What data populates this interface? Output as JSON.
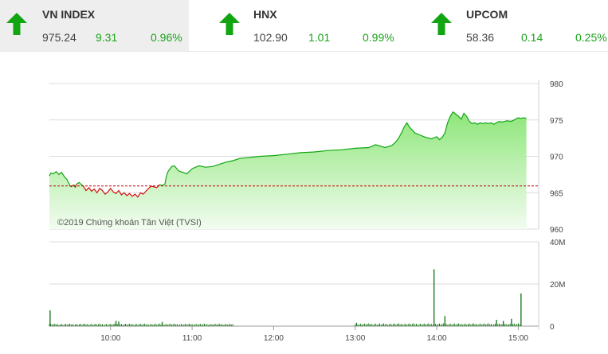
{
  "indices": [
    {
      "name": "VN INDEX",
      "value": "975.24",
      "change": "9.31",
      "percent": "0.96%",
      "direction": "up"
    },
    {
      "name": "HNX",
      "value": "102.90",
      "change": "1.01",
      "percent": "0.99%",
      "direction": "up"
    },
    {
      "name": "UPCOM",
      "value": "58.36",
      "change": "0.14",
      "percent": "0.25%",
      "direction": "up"
    }
  ],
  "colors": {
    "up": "#11a611",
    "down": "#d31010",
    "area_top": "#8ee67a",
    "area_bottom": "#f2fcf0",
    "reference": "#c00000",
    "grid": "#dcdcdc",
    "volume": "#1f7a1f"
  },
  "chart_data": [
    {
      "type": "area",
      "watermark": "©2019 Chứng khoán Tân Việt (TVSI)",
      "reference_value": 965.93,
      "ylim": [
        960,
        980
      ],
      "yticks": [
        "960",
        "965",
        "970",
        "975",
        "980"
      ],
      "x_unit": "minutes since 09:00",
      "xlim": [
        15,
        375
      ],
      "grid": true,
      "series": [
        {
          "x": [
            15,
            16,
            18,
            20,
            22,
            24,
            26,
            28,
            30,
            31,
            33,
            34,
            35,
            37,
            38,
            40,
            42,
            44,
            46,
            48,
            50,
            52,
            54,
            56,
            58,
            60,
            62,
            64,
            66,
            68,
            70,
            72,
            74,
            76,
            78,
            80,
            82,
            84,
            86,
            88,
            90,
            92,
            94,
            96,
            98,
            100,
            101,
            102,
            103,
            105,
            107,
            110,
            113,
            116,
            120,
            125,
            130,
            135,
            140,
            145,
            150,
            155,
            160,
            170,
            180,
            190,
            200,
            210,
            220,
            230,
            240,
            250,
            255,
            262,
            267,
            270,
            272,
            274,
            276,
            278,
            280,
            284,
            288,
            292,
            296,
            300,
            302,
            304,
            306,
            308,
            310,
            312,
            314,
            316,
            318,
            320,
            322,
            324,
            326,
            328,
            330,
            332,
            334,
            336,
            338,
            340,
            342,
            344,
            346,
            348,
            350,
            352,
            354,
            356,
            358,
            360,
            362,
            364,
            366
          ],
          "values": [
            967.3,
            967.7,
            967.6,
            967.9,
            967.5,
            967.8,
            967.2,
            966.8,
            966.0,
            965.8,
            966.1,
            965.7,
            966.2,
            966.4,
            966.2,
            965.9,
            965.3,
            965.7,
            965.2,
            965.5,
            965.0,
            965.6,
            965.3,
            964.8,
            965.1,
            965.6,
            965.1,
            964.9,
            965.3,
            964.7,
            965.0,
            964.6,
            964.9,
            964.5,
            964.8,
            964.4,
            965.0,
            964.8,
            965.2,
            965.6,
            965.9,
            965.8,
            965.7,
            966.1,
            966.0,
            966.2,
            967.2,
            967.8,
            968.1,
            968.6,
            968.7,
            968.0,
            967.8,
            967.6,
            968.3,
            968.7,
            968.5,
            968.6,
            968.9,
            969.2,
            969.4,
            969.7,
            969.8,
            970.0,
            970.1,
            970.3,
            970.5,
            970.6,
            970.8,
            970.9,
            971.1,
            971.2,
            971.6,
            971.2,
            971.5,
            972.0,
            972.5,
            973.2,
            974.0,
            974.6,
            974.0,
            973.2,
            972.9,
            972.6,
            972.4,
            972.7,
            972.3,
            972.6,
            973.2,
            974.6,
            975.5,
            976.1,
            975.8,
            975.5,
            975.1,
            975.9,
            975.5,
            974.8,
            974.5,
            974.6,
            974.4,
            974.6,
            974.5,
            974.6,
            974.5,
            974.6,
            974.4,
            974.6,
            974.8,
            974.7,
            974.8,
            974.9,
            974.8,
            974.9,
            975.1,
            975.3,
            975.2,
            975.3,
            975.2
          ]
        }
      ]
    },
    {
      "type": "bar",
      "ylim": [
        0,
        40
      ],
      "yticks": [
        "0",
        "20M",
        "40M"
      ],
      "x_unit": "minutes since 09:00",
      "xlim": [
        15,
        375
      ],
      "xticks": [
        "10:00",
        "11:00",
        "12:00",
        "13:00",
        "14:00",
        "15:00"
      ],
      "tick_minutes": [
        60,
        120,
        180,
        240,
        300,
        360
      ],
      "grid": true,
      "spikes": [
        {
          "x": 15.5,
          "value": 7.5
        },
        {
          "x": 64,
          "value": 2.5
        },
        {
          "x": 66,
          "value": 2.2
        },
        {
          "x": 98,
          "value": 2.0
        },
        {
          "x": 241,
          "value": 1.6
        },
        {
          "x": 298,
          "value": 27.0
        },
        {
          "x": 306,
          "value": 4.8
        },
        {
          "x": 344,
          "value": 3.0
        },
        {
          "x": 349,
          "value": 2.5
        },
        {
          "x": 355,
          "value": 3.5
        },
        {
          "x": 362,
          "value": 15.5
        }
      ],
      "baseline": [
        {
          "from": 15,
          "to": 150,
          "value": 0.9
        },
        {
          "from": 240,
          "to": 362,
          "value": 1.0
        }
      ]
    }
  ]
}
